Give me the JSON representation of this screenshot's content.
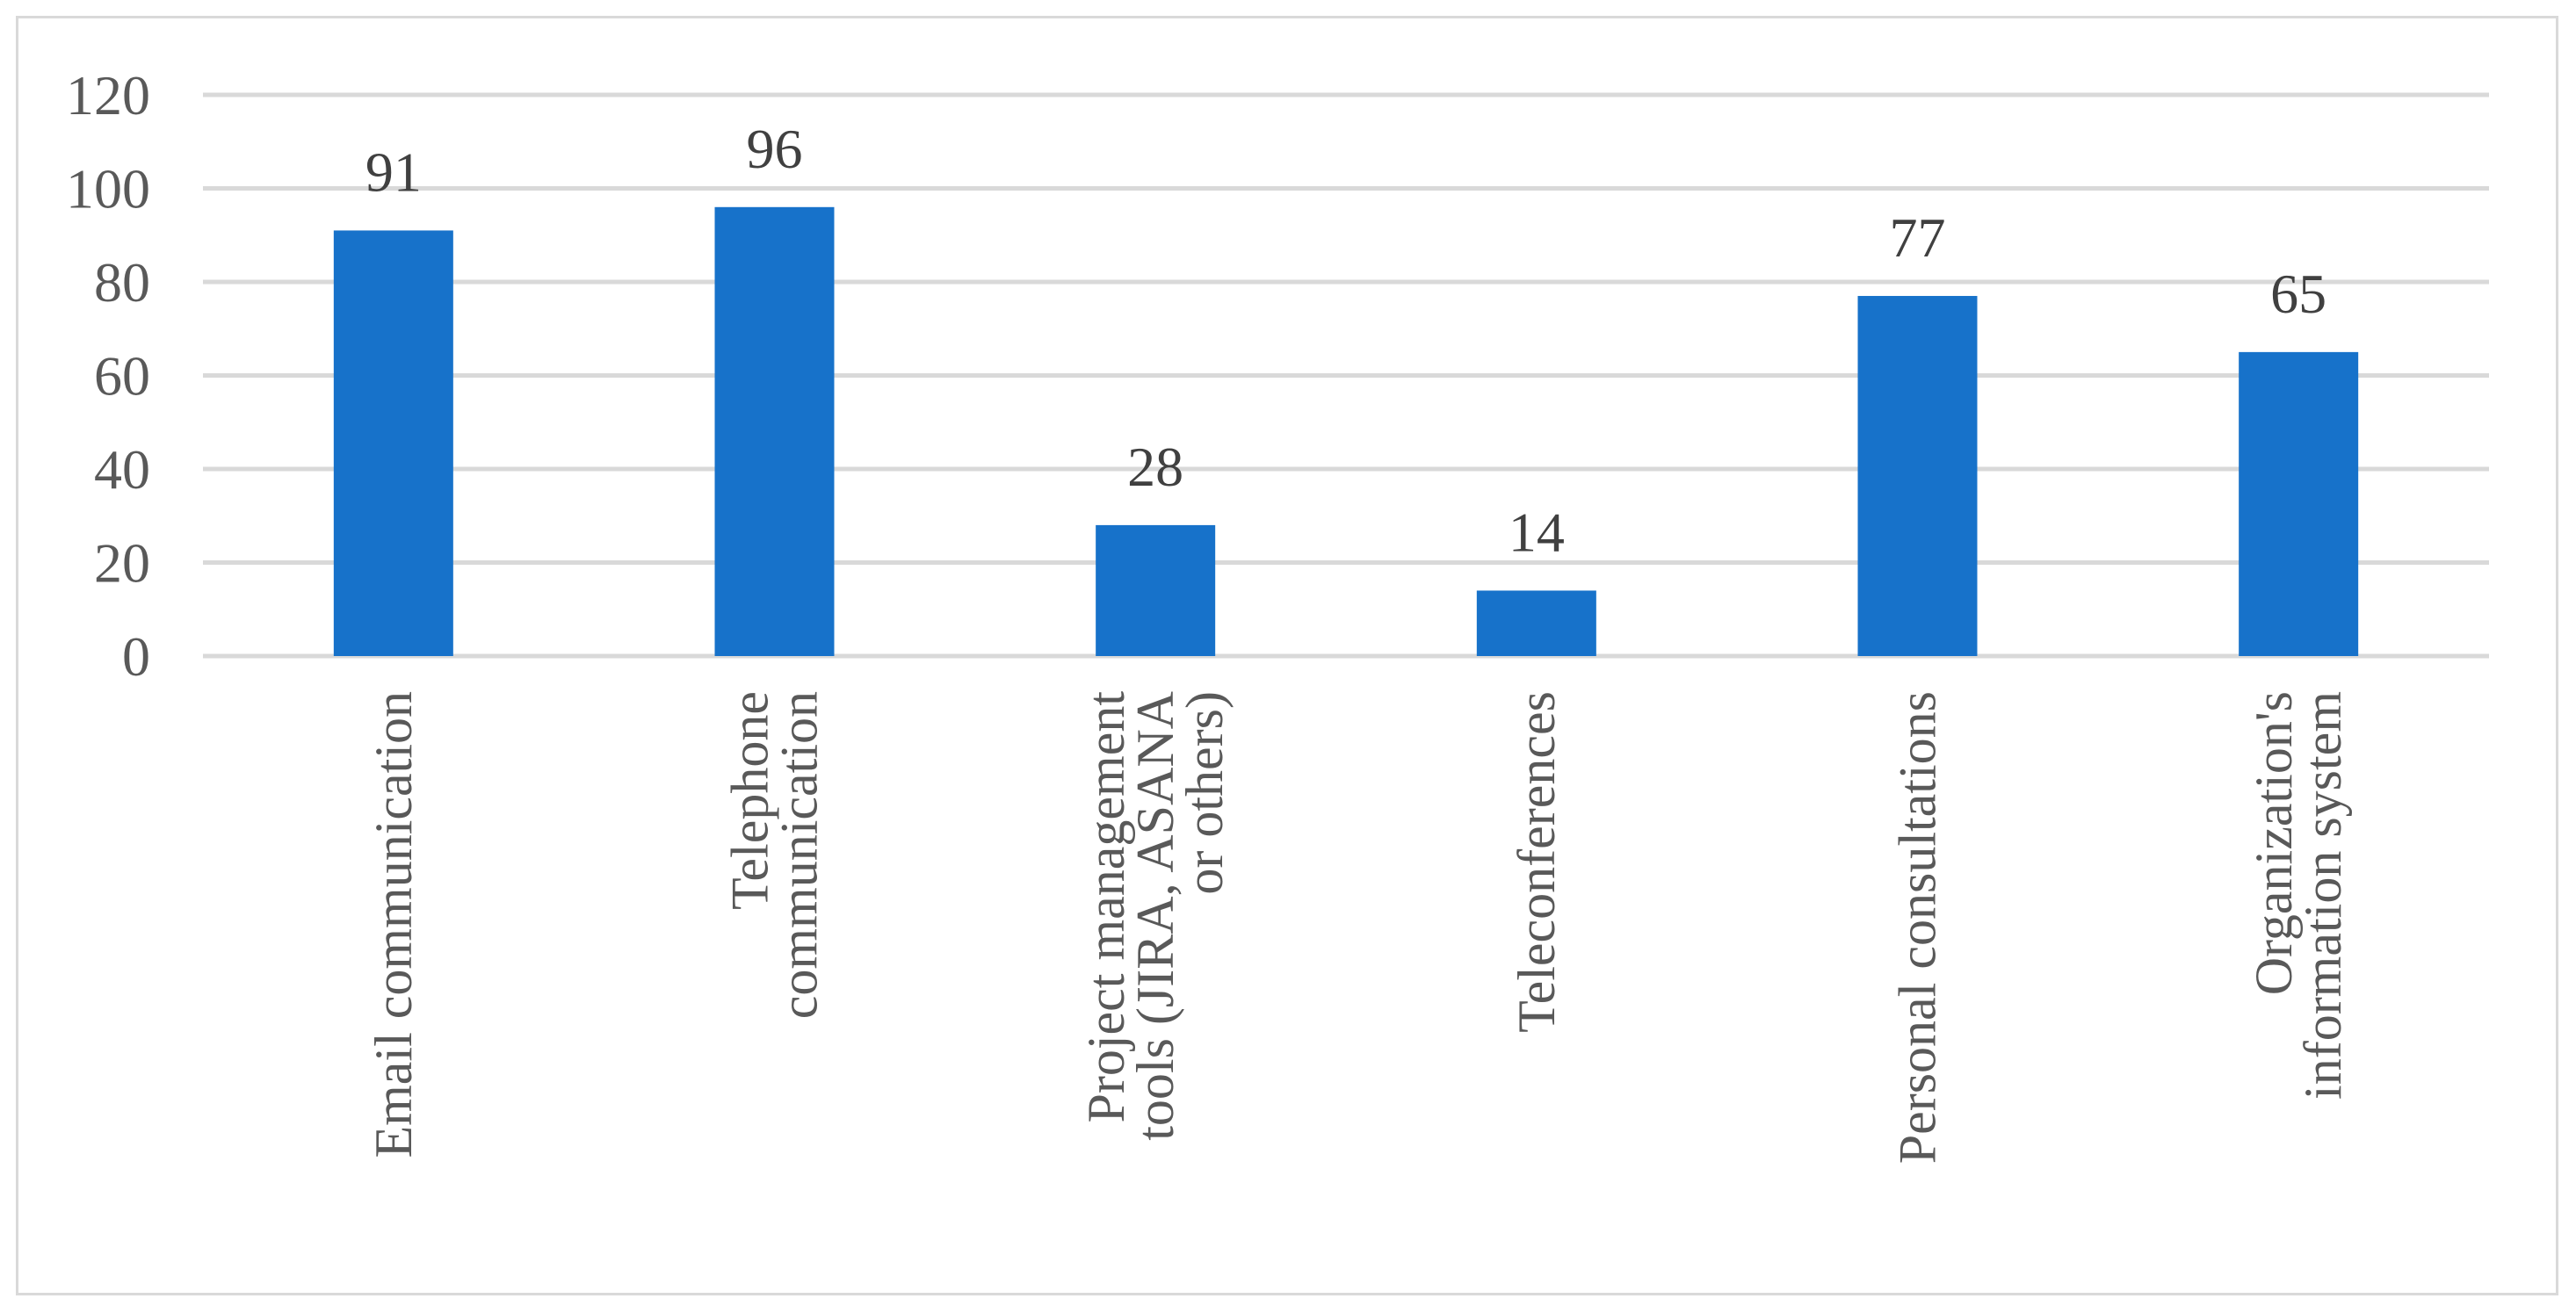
{
  "chart_data": {
    "type": "bar",
    "categories": [
      [
        "Email communication"
      ],
      [
        "Telephone",
        "communication"
      ],
      [
        "Project management",
        "tools (JIRA, ASANA",
        "or others)"
      ],
      [
        "Teleconferences"
      ],
      [
        "Personal consultations"
      ],
      [
        "Organization's",
        "information system"
      ]
    ],
    "values": [
      91,
      96,
      28,
      14,
      77,
      65
    ],
    "data_labels": [
      "91",
      "96",
      "28",
      "14",
      "77",
      "65"
    ],
    "y_ticks": [
      "0",
      "20",
      "40",
      "60",
      "80",
      "100",
      "120"
    ],
    "ylim": [
      0,
      120
    ],
    "grid": true,
    "bar_color": "#1772CA",
    "gridline_color": "#D9D9D9"
  }
}
